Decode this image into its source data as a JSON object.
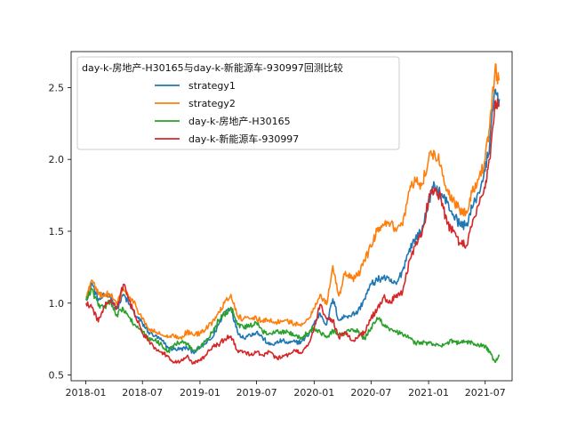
{
  "chart_data": {
    "type": "line",
    "title": "",
    "xlabel": "",
    "ylabel": "",
    "x_ticks": [
      "2018-01",
      "2018-07",
      "2019-01",
      "2019-07",
      "2020-01",
      "2020-07",
      "2021-01",
      "2021-07"
    ],
    "y_ticks": [
      "0.5",
      "1.0",
      "1.5",
      "2.0",
      "2.5"
    ],
    "xlim": [
      "2017-11-15",
      "2021-09-25"
    ],
    "ylim": [
      0.46,
      2.75
    ],
    "grid": false,
    "legend": {
      "title": "day-k-房地产-H30165与day-k-新能源车-930997回测比较",
      "placement": "top-left"
    },
    "x": [
      "2018-01-02",
      "2018-01-20",
      "2018-02-10",
      "2018-03-01",
      "2018-03-20",
      "2018-04-10",
      "2018-05-01",
      "2018-05-20",
      "2018-06-10",
      "2018-07-01",
      "2018-07-20",
      "2018-08-10",
      "2018-09-01",
      "2018-09-20",
      "2018-10-10",
      "2018-11-01",
      "2018-11-20",
      "2018-12-10",
      "2019-01-01",
      "2019-01-20",
      "2019-02-10",
      "2019-03-01",
      "2019-03-20",
      "2019-04-10",
      "2019-05-01",
      "2019-05-20",
      "2019-06-10",
      "2019-07-01",
      "2019-07-20",
      "2019-08-10",
      "2019-09-01",
      "2019-09-20",
      "2019-10-10",
      "2019-11-01",
      "2019-11-20",
      "2019-12-10",
      "2020-01-01",
      "2020-01-20",
      "2020-02-10",
      "2020-03-01",
      "2020-03-20",
      "2020-04-10",
      "2020-05-01",
      "2020-05-20",
      "2020-06-10",
      "2020-07-01",
      "2020-07-20",
      "2020-08-10",
      "2020-09-01",
      "2020-09-20",
      "2020-10-10",
      "2020-11-01",
      "2020-11-20",
      "2020-12-10",
      "2021-01-01",
      "2021-01-20",
      "2021-02-10",
      "2021-03-01",
      "2021-03-20",
      "2021-04-10",
      "2021-05-01",
      "2021-05-20",
      "2021-06-10",
      "2021-07-01",
      "2021-07-15",
      "2021-08-01",
      "2021-08-15"
    ],
    "series": [
      {
        "name": "strategy1",
        "color": "#1f77b4",
        "values": [
          1.03,
          1.14,
          1.02,
          1.05,
          1.06,
          0.96,
          1.06,
          0.99,
          0.91,
          0.86,
          0.8,
          0.77,
          0.74,
          0.69,
          0.68,
          0.68,
          0.69,
          0.66,
          0.69,
          0.72,
          0.76,
          0.85,
          0.94,
          0.97,
          0.8,
          0.76,
          0.78,
          0.8,
          0.76,
          0.71,
          0.72,
          0.74,
          0.72,
          0.73,
          0.73,
          0.77,
          0.86,
          0.93,
          0.85,
          1.03,
          0.88,
          0.91,
          0.92,
          0.94,
          1.03,
          1.13,
          1.16,
          1.18,
          1.15,
          1.13,
          1.23,
          1.38,
          1.45,
          1.5,
          1.71,
          1.82,
          1.76,
          1.7,
          1.62,
          1.55,
          1.54,
          1.66,
          1.77,
          1.92,
          2.1,
          2.48,
          2.42
        ]
      },
      {
        "name": "strategy2",
        "color": "#ff7f0e",
        "values": [
          1.04,
          1.16,
          1.06,
          1.06,
          1.06,
          0.99,
          1.1,
          1.04,
          0.98,
          0.89,
          0.82,
          0.8,
          0.78,
          0.76,
          0.77,
          0.76,
          0.8,
          0.78,
          0.79,
          0.82,
          0.87,
          0.94,
          1.0,
          1.06,
          0.91,
          0.89,
          0.89,
          0.89,
          0.88,
          0.88,
          0.87,
          0.87,
          0.87,
          0.86,
          0.84,
          0.89,
          0.96,
          1.06,
          0.99,
          1.26,
          1.05,
          1.22,
          1.17,
          1.19,
          1.3,
          1.39,
          1.5,
          1.54,
          1.55,
          1.5,
          1.54,
          1.78,
          1.85,
          1.82,
          2.0,
          2.05,
          1.96,
          1.78,
          1.72,
          1.65,
          1.64,
          1.77,
          1.86,
          2.0,
          2.22,
          2.62,
          2.55
        ]
      },
      {
        "name": "day-k-房地产-H30165",
        "color": "#2ca02c",
        "values": [
          1.02,
          1.1,
          0.98,
          0.97,
          1.02,
          0.92,
          0.96,
          0.9,
          0.84,
          0.8,
          0.75,
          0.74,
          0.71,
          0.66,
          0.71,
          0.73,
          0.72,
          0.67,
          0.69,
          0.74,
          0.8,
          0.88,
          0.92,
          0.97,
          0.85,
          0.83,
          0.84,
          0.86,
          0.8,
          0.79,
          0.81,
          0.8,
          0.8,
          0.77,
          0.76,
          0.79,
          0.83,
          0.8,
          0.76,
          0.81,
          0.78,
          0.79,
          0.82,
          0.8,
          0.75,
          0.83,
          0.9,
          0.85,
          0.82,
          0.8,
          0.78,
          0.76,
          0.72,
          0.73,
          0.72,
          0.71,
          0.7,
          0.72,
          0.74,
          0.72,
          0.73,
          0.73,
          0.71,
          0.7,
          0.66,
          0.59,
          0.63
        ]
      },
      {
        "name": "day-k-新能源车-930997",
        "color": "#d62728",
        "values": [
          1.0,
          0.97,
          0.87,
          0.98,
          1.02,
          0.96,
          1.13,
          1.02,
          0.9,
          0.79,
          0.74,
          0.69,
          0.66,
          0.63,
          0.59,
          0.6,
          0.63,
          0.58,
          0.6,
          0.64,
          0.7,
          0.71,
          0.75,
          0.77,
          0.67,
          0.66,
          0.64,
          0.66,
          0.64,
          0.66,
          0.62,
          0.62,
          0.64,
          0.67,
          0.65,
          0.7,
          0.82,
          0.99,
          0.89,
          0.88,
          0.76,
          0.8,
          0.74,
          0.76,
          0.8,
          0.9,
          0.95,
          1.04,
          1.0,
          1.06,
          1.08,
          1.3,
          1.4,
          1.47,
          1.72,
          1.8,
          1.73,
          1.55,
          1.5,
          1.42,
          1.4,
          1.54,
          1.68,
          1.8,
          2.0,
          2.4,
          2.38
        ]
      }
    ]
  }
}
